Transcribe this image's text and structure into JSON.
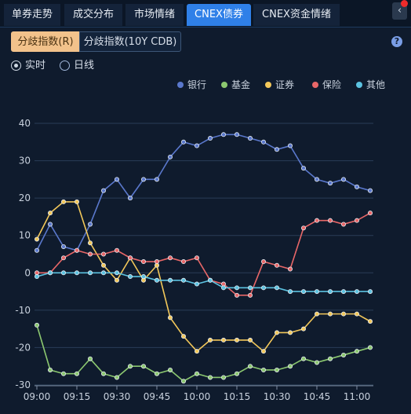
{
  "tabs": [
    {
      "label": "单券走势",
      "active": false
    },
    {
      "label": "成交分布",
      "active": false
    },
    {
      "label": "市场情绪",
      "active": false
    },
    {
      "label": "CNEX债券",
      "active": true
    },
    {
      "label": "CNEX资金情绪",
      "active": false
    }
  ],
  "collapse_glyph": "‹",
  "segments": [
    {
      "label": "分歧指数(R)",
      "active": true
    },
    {
      "label": "分歧指数(10Y CDB)",
      "active": false
    }
  ],
  "help_glyph": "?",
  "radios": [
    {
      "label": "实时",
      "checked": true
    },
    {
      "label": "日线",
      "checked": false
    }
  ],
  "colors": {
    "accent": "#2f80e8",
    "segment_active": "#f2c28b"
  },
  "chart_data": {
    "type": "line",
    "x": [
      "09:00",
      "09:05",
      "09:10",
      "09:15",
      "09:20",
      "09:25",
      "09:30",
      "09:35",
      "09:40",
      "09:45",
      "09:50",
      "09:55",
      "10:00",
      "10:05",
      "10:10",
      "10:15",
      "10:20",
      "10:25",
      "10:30",
      "10:35",
      "10:40",
      "10:45",
      "10:50",
      "10:55",
      "11:00",
      "11:05"
    ],
    "xticks": [
      "09:00",
      "09:15",
      "09:30",
      "09:45",
      "10:00",
      "10:15",
      "10:30",
      "10:45",
      "11:00"
    ],
    "ylim": [
      -30,
      40
    ],
    "yticks": [
      40,
      30,
      20,
      10,
      0,
      -10,
      -20,
      -30
    ],
    "grid": true,
    "legend_position": "top-right",
    "series": [
      {
        "name": "银行",
        "color": "#5a78cc",
        "values": [
          6,
          13,
          7,
          6,
          13,
          22,
          25,
          20,
          25,
          25,
          31,
          35,
          34,
          36,
          37,
          37,
          36,
          35,
          33,
          34,
          28,
          25,
          24,
          25,
          23,
          22
        ]
      },
      {
        "name": "基金",
        "color": "#8cc870",
        "values": [
          -14,
          -26,
          -27,
          -27,
          -23,
          -27,
          -28,
          -25,
          -25,
          -27,
          -26,
          -29,
          -27,
          -28,
          -28,
          -27,
          -25,
          -26,
          -26,
          -25,
          -23,
          -24,
          -23,
          -22,
          -21,
          -20
        ]
      },
      {
        "name": "证券",
        "color": "#f3c85a",
        "values": [
          9,
          16,
          19,
          19,
          8,
          2,
          -2,
          4,
          -2,
          2,
          -12,
          -17,
          -21,
          -18,
          -18,
          -18,
          -18,
          -21,
          -16,
          -16,
          -15,
          -11,
          -11,
          -11,
          -11,
          -13
        ]
      },
      {
        "name": "保险",
        "color": "#e86768",
        "values": [
          0,
          0,
          4,
          6,
          5,
          5,
          6,
          4,
          3,
          3,
          4,
          3,
          4,
          -2,
          -3,
          -6,
          -6,
          3,
          2,
          1,
          12,
          14,
          14,
          13,
          14,
          16
        ]
      },
      {
        "name": "其他",
        "color": "#5cc3e1",
        "values": [
          -1,
          0,
          0,
          0,
          0,
          0,
          0,
          -1,
          -1,
          -2,
          -2,
          -2,
          -3,
          -2,
          -4,
          -4,
          -4,
          -4,
          -4,
          -5,
          -5,
          -5,
          -5,
          -5,
          -5,
          -5
        ]
      }
    ]
  }
}
